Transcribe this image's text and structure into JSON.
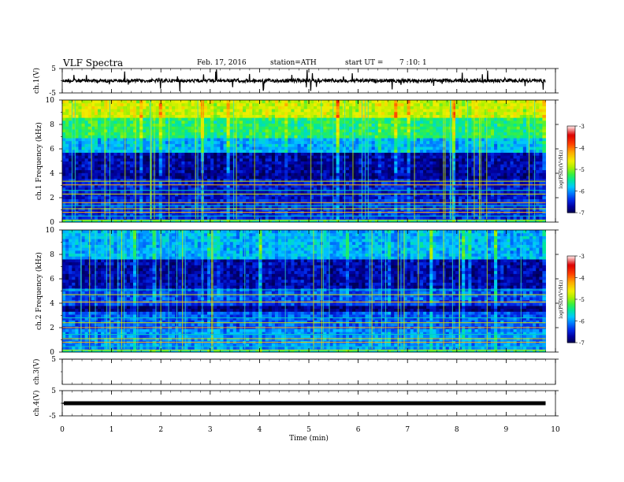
{
  "header": {
    "title": "VLF  Spectra",
    "date": "Feb. 17, 2016",
    "station": "station=ATH",
    "start_label": "start  UT  =",
    "start_time": "7  :10: 1"
  },
  "chart_data": [
    {
      "type": "line",
      "panel": "ch1-waveform",
      "ylabel": "ch.1(V)",
      "ylim": [
        -5,
        5
      ],
      "yticks": [
        "5",
        "-5"
      ],
      "baseline": 0,
      "noise_amplitude": 0.7,
      "spikes": true
    },
    {
      "type": "heatmap",
      "panel": "ch1-spectrogram",
      "ylabel": "ch.1  Frequency  (kHz)",
      "ylim": [
        0,
        10
      ],
      "yticks": [
        "0",
        "2",
        "4",
        "6",
        "8",
        "10"
      ],
      "colorbar": {
        "label": "log(PSD)(V²/Hz)",
        "ticks": [
          "-3",
          "-4",
          "-5",
          "-6",
          "-7"
        ],
        "range": [
          -7,
          -3
        ]
      },
      "bands": [
        {
          "from_khz": 0.0,
          "to_khz": 0.35,
          "log_psd": -5.6
        },
        {
          "from_khz": 0.35,
          "to_khz": 1.9,
          "log_psd": -6.5
        },
        {
          "from_khz": 1.9,
          "to_khz": 3.6,
          "log_psd": -6.6
        },
        {
          "from_khz": 3.6,
          "to_khz": 5.8,
          "log_psd": -6.85
        },
        {
          "from_khz": 5.8,
          "to_khz": 7.0,
          "log_psd": -6.0
        },
        {
          "from_khz": 7.0,
          "to_khz": 8.5,
          "log_psd": -5.5
        },
        {
          "from_khz": 8.5,
          "to_khz": 10.0,
          "log_psd": -4.9
        }
      ],
      "tones_khz": [
        0.15,
        0.5,
        0.8,
        1.1,
        1.35,
        1.6,
        2.3,
        2.6,
        3.05,
        3.35
      ]
    },
    {
      "type": "heatmap",
      "panel": "ch2-spectrogram",
      "ylabel": "ch.2  Frequency  (kHz)",
      "ylim": [
        0,
        10
      ],
      "yticks": [
        "0",
        "2",
        "4",
        "6",
        "8",
        "10"
      ],
      "colorbar": {
        "label": "log(PSD)(V²/Hz)",
        "ticks": [
          "-3",
          "-4",
          "-5",
          "-6",
          "-7"
        ],
        "range": [
          -7,
          -3
        ]
      },
      "bands": [
        {
          "from_khz": 0.0,
          "to_khz": 0.35,
          "log_psd": -5.6
        },
        {
          "from_khz": 0.35,
          "to_khz": 1.9,
          "log_psd": -6.1
        },
        {
          "from_khz": 1.9,
          "to_khz": 3.3,
          "log_psd": -6.3
        },
        {
          "from_khz": 3.3,
          "to_khz": 3.9,
          "log_psd": -6.9
        },
        {
          "from_khz": 3.9,
          "to_khz": 5.2,
          "log_psd": -6.4
        },
        {
          "from_khz": 5.2,
          "to_khz": 7.6,
          "log_psd": -6.8
        },
        {
          "from_khz": 7.6,
          "to_khz": 10.0,
          "log_psd": -6.0
        }
      ],
      "tones_khz": [
        0.15,
        0.45,
        0.8,
        1.1,
        1.45,
        2.0,
        2.4,
        2.8,
        4.1,
        4.7,
        5.1
      ]
    },
    {
      "type": "line",
      "panel": "ch3-waveform",
      "ylabel": "ch.3(V)",
      "ylim": [
        -5,
        5
      ],
      "yticks": [
        "5"
      ],
      "baseline": 5,
      "noise_amplitude": 0.05,
      "spikes": false
    },
    {
      "type": "line",
      "panel": "ch4-waveform",
      "ylabel": "ch.4(V)",
      "ylim": [
        -5,
        5
      ],
      "yticks": [
        "5",
        "-5"
      ],
      "baseline": 0,
      "noise_amplitude": 0.15,
      "spikes": false
    }
  ],
  "xaxis": {
    "label": "Time  (min)",
    "xlim": [
      0,
      10
    ],
    "ticks": [
      "0",
      "1",
      "2",
      "3",
      "4",
      "5",
      "6",
      "7",
      "8",
      "9",
      "10"
    ],
    "data_end_min": 9.8
  }
}
